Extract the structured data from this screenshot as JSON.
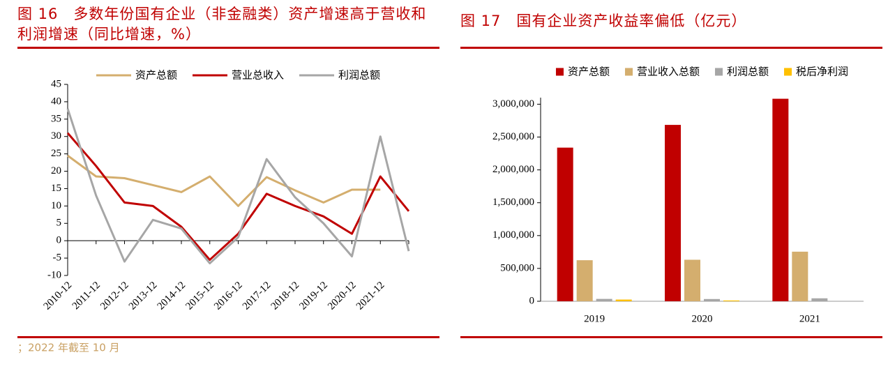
{
  "chart_data": [
    {
      "type": "line",
      "title": "图 16　多数年份国有企业（非金融类）资产增速高于营收和利润增速（同比增速，%）",
      "categories": [
        "2010-12",
        "2011-12",
        "2012-12",
        "2013-12",
        "2014-12",
        "2015-12",
        "2016-12",
        "2017-12",
        "2018-12",
        "2019-12",
        "2020-12",
        "2021-12",
        null
      ],
      "series": [
        {
          "name": "资产总额",
          "color": "#D4AE6E",
          "values": [
            24.5,
            18.5,
            18,
            16,
            14,
            18.5,
            10,
            18.3,
            14.5,
            11,
            14.7,
            14.7,
            null
          ]
        },
        {
          "name": "营业总收入",
          "color": "#C00000",
          "values": [
            31,
            21.5,
            11,
            10,
            4,
            -5.5,
            2,
            13.5,
            10,
            7,
            2,
            18.5,
            8.5
          ]
        },
        {
          "name": "利润总额",
          "color": "#A6A6A6",
          "values": [
            38,
            13,
            -6,
            6,
            3.5,
            -6.5,
            1,
            23.5,
            12.5,
            5,
            -4.5,
            30,
            -3
          ]
        }
      ],
      "ylim": [
        -10,
        45
      ],
      "yticks": [
        -10,
        -5,
        0,
        5,
        10,
        15,
        20,
        25,
        30,
        35,
        40,
        45
      ],
      "legend": "top",
      "footnote": "；2022 年截至 10 月"
    },
    {
      "type": "bar",
      "title": "图 17　国有企业资产收益率偏低（亿元）",
      "categories": [
        "2019",
        "2020",
        "2021"
      ],
      "series": [
        {
          "name": "资产总额",
          "color": "#C00000",
          "values": [
            2339000,
            2685000,
            3083000
          ]
        },
        {
          "name": "营业收入总额",
          "color": "#D4AE6E",
          "values": [
            625000,
            632000,
            755000
          ]
        },
        {
          "name": "利润总额",
          "color": "#A6A6A6",
          "values": [
            36000,
            34000,
            45000
          ]
        },
        {
          "name": "税后净利润",
          "color": "#FFC000",
          "values": [
            26000,
            12000,
            null
          ]
        }
      ],
      "ylim": [
        0,
        3100000
      ],
      "yticks": [
        0,
        {
          "value": 500000,
          "label": "500,000"
        },
        {
          "value": 1000000,
          "label": "1,000,000"
        },
        {
          "value": 1500000,
          "label": "1,500,000"
        },
        {
          "value": 2000000,
          "label": "2,000,000"
        },
        {
          "value": 2500000,
          "label": "2,500,000"
        },
        {
          "value": 3000000,
          "label": "3,000,000"
        }
      ],
      "legend": "top"
    }
  ]
}
